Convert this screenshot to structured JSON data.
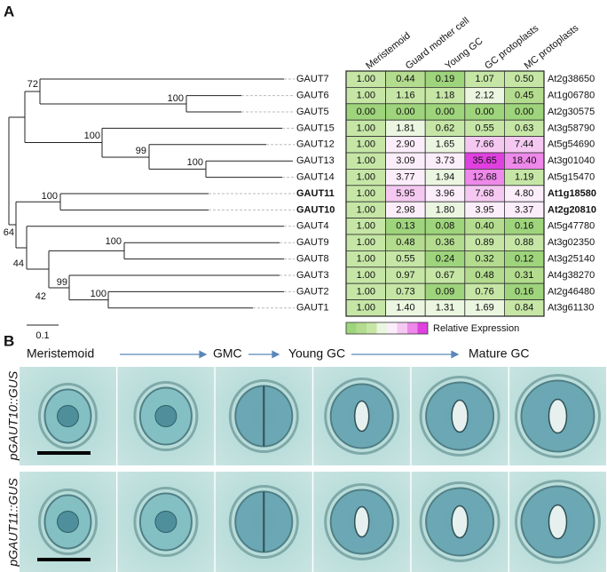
{
  "panel_a": {
    "label": "A",
    "columns": [
      "Meristemoid",
      "Guard mother cell",
      "Young GC",
      "GC protoplasts",
      "MC protoplasts"
    ],
    "rows": [
      {
        "gene": "GAUT7",
        "values": [
          "1.00",
          "0.44",
          "0.19",
          "1.07",
          "0.50"
        ],
        "locus": "At2g38650"
      },
      {
        "gene": "GAUT6",
        "values": [
          "1.00",
          "1.16",
          "1.18",
          "2.12",
          "0.45"
        ],
        "locus": "At1g06780"
      },
      {
        "gene": "GAUT5",
        "values": [
          "0.00",
          "0.00",
          "0.00",
          "0.00",
          "0.00"
        ],
        "locus": "At2g30575"
      },
      {
        "gene": "GAUT15",
        "values": [
          "1.00",
          "1.81",
          "0.62",
          "0.55",
          "0.63"
        ],
        "locus": "At3g58790"
      },
      {
        "gene": "GAUT12",
        "values": [
          "1.00",
          "2.90",
          "1.65",
          "7.66",
          "7.44"
        ],
        "locus": "At5g54690"
      },
      {
        "gene": "GAUT13",
        "values": [
          "1.00",
          "3.09",
          "3.73",
          "35.65",
          "18.40"
        ],
        "locus": "At3g01040"
      },
      {
        "gene": "GAUT14",
        "values": [
          "1.00",
          "3.77",
          "1.94",
          "12.68",
          "1.19"
        ],
        "locus": "At5g15470"
      },
      {
        "gene": "GAUT11",
        "values": [
          "1.00",
          "5.95",
          "3.96",
          "7.68",
          "4.80"
        ],
        "locus": "At1g18580",
        "bold": true
      },
      {
        "gene": "GAUT10",
        "values": [
          "1.00",
          "2.98",
          "1.80",
          "3.95",
          "3.37"
        ],
        "locus": "At2g20810",
        "bold": true
      },
      {
        "gene": "GAUT4",
        "values": [
          "1.00",
          "0.13",
          "0.08",
          "0.40",
          "0.16"
        ],
        "locus": "At5g47780"
      },
      {
        "gene": "GAUT9",
        "values": [
          "1.00",
          "0.48",
          "0.36",
          "0.89",
          "0.88"
        ],
        "locus": "At3g02350"
      },
      {
        "gene": "GAUT8",
        "values": [
          "1.00",
          "0.55",
          "0.24",
          "0.32",
          "0.12"
        ],
        "locus": "At3g25140"
      },
      {
        "gene": "GAUT3",
        "values": [
          "1.00",
          "0.97",
          "0.67",
          "0.48",
          "0.31"
        ],
        "locus": "At4g38270"
      },
      {
        "gene": "GAUT2",
        "values": [
          "1.00",
          "0.73",
          "0.09",
          "0.76",
          "0.16"
        ],
        "locus": "At2g46480"
      },
      {
        "gene": "GAUT1",
        "values": [
          "1.00",
          "1.40",
          "1.31",
          "1.69",
          "0.84"
        ],
        "locus": "At3g61130"
      }
    ],
    "tree": {
      "bootstrap": [
        "72",
        "100",
        "100",
        "99",
        "100",
        "64",
        "100",
        "44",
        "42",
        "100",
        "99",
        "100"
      ],
      "scale": "0.1"
    },
    "legend": {
      "label": "Relative Expression",
      "colors": [
        "#9ed47b",
        "#b3dc8e",
        "#c6e6a6",
        "#eaf6e0",
        "#fbeefa",
        "#f5c8f2",
        "#ee88ea",
        "#e040e0"
      ]
    }
  },
  "panel_b": {
    "label": "B",
    "stages": [
      "Meristemoid",
      "GMC",
      "Young GC",
      "Mature GC"
    ],
    "row_labels": [
      "pGAUT10::GUS",
      "pGAUT11::GUS"
    ]
  }
}
